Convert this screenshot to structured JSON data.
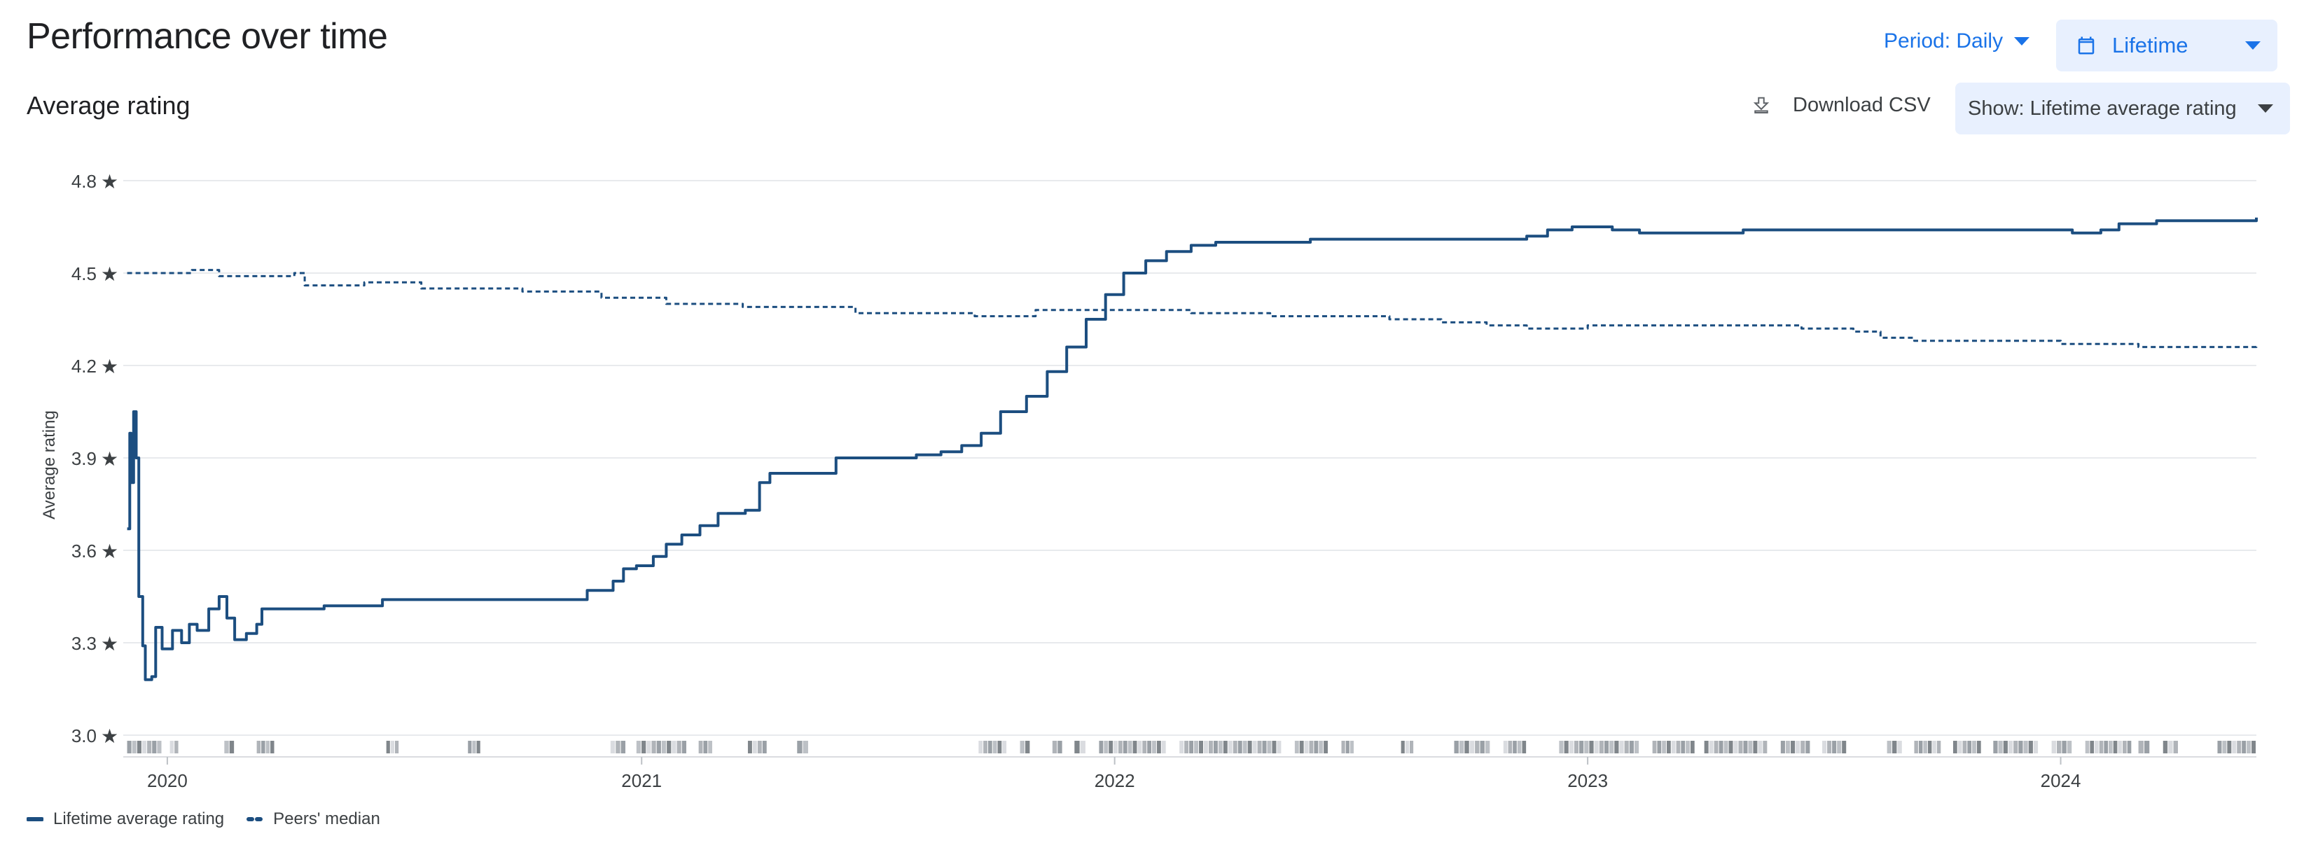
{
  "header": {
    "title": "Performance over time",
    "period_label": "Period: Daily",
    "range_label": "Lifetime"
  },
  "section": {
    "title": "Average rating",
    "download_label": "Download CSV",
    "show_label": "Show: Lifetime average rating"
  },
  "icons": {
    "calendar": "calendar-icon",
    "download": "download-icon",
    "star": "star-icon",
    "dropdown": "chevron-down-icon"
  },
  "colors": {
    "series": "#1c4e80",
    "accent": "#1a73e8",
    "button_bg": "#e8f0fe",
    "grid": "#e8eaed"
  },
  "chart_data": {
    "type": "line",
    "ylabel": "Average rating",
    "xlabel": "",
    "ylim": [
      3.0,
      4.8
    ],
    "xlim": [
      "2019-11-28",
      "2024-05-31"
    ],
    "y_ticks": [
      {
        "value": 4.8,
        "label": "4.8"
      },
      {
        "value": 4.5,
        "label": "4.5"
      },
      {
        "value": 4.2,
        "label": "4.2"
      },
      {
        "value": 3.9,
        "label": "3.9"
      },
      {
        "value": 3.6,
        "label": "3.6"
      },
      {
        "value": 3.3,
        "label": "3.3"
      },
      {
        "value": 3.0,
        "label": "3.0"
      }
    ],
    "x_ticks": [
      {
        "date": "2020-01-01",
        "label": "2020"
      },
      {
        "date": "2021-01-01",
        "label": "2021"
      },
      {
        "date": "2022-01-01",
        "label": "2022"
      },
      {
        "date": "2023-01-01",
        "label": "2023"
      },
      {
        "date": "2024-01-01",
        "label": "2024"
      }
    ],
    "grid": true,
    "legend_position": "bottom-left",
    "series": [
      {
        "name": "Lifetime average rating",
        "style": "solid",
        "step": true,
        "points": [
          [
            "2019-12-01",
            3.67
          ],
          [
            "2019-12-03",
            3.98
          ],
          [
            "2019-12-04",
            3.82
          ],
          [
            "2019-12-06",
            4.05
          ],
          [
            "2019-12-08",
            3.9
          ],
          [
            "2019-12-10",
            3.45
          ],
          [
            "2019-12-13",
            3.29
          ],
          [
            "2019-12-15",
            3.18
          ],
          [
            "2019-12-20",
            3.19
          ],
          [
            "2019-12-23",
            3.35
          ],
          [
            "2019-12-28",
            3.28
          ],
          [
            "2020-01-05",
            3.34
          ],
          [
            "2020-01-12",
            3.3
          ],
          [
            "2020-01-18",
            3.36
          ],
          [
            "2020-01-24",
            3.34
          ],
          [
            "2020-02-02",
            3.41
          ],
          [
            "2020-02-10",
            3.45
          ],
          [
            "2020-02-16",
            3.38
          ],
          [
            "2020-02-22",
            3.31
          ],
          [
            "2020-03-02",
            3.33
          ],
          [
            "2020-03-10",
            3.36
          ],
          [
            "2020-03-14",
            3.41
          ],
          [
            "2020-05-01",
            3.42
          ],
          [
            "2020-06-15",
            3.44
          ],
          [
            "2020-11-20",
            3.47
          ],
          [
            "2020-12-10",
            3.5
          ],
          [
            "2020-12-18",
            3.54
          ],
          [
            "2020-12-28",
            3.55
          ],
          [
            "2021-01-10",
            3.58
          ],
          [
            "2021-01-20",
            3.62
          ],
          [
            "2021-02-01",
            3.65
          ],
          [
            "2021-02-15",
            3.68
          ],
          [
            "2021-03-01",
            3.72
          ],
          [
            "2021-03-22",
            3.73
          ],
          [
            "2021-04-02",
            3.82
          ],
          [
            "2021-04-10",
            3.85
          ],
          [
            "2021-05-31",
            3.9
          ],
          [
            "2021-08-01",
            3.91
          ],
          [
            "2021-08-20",
            3.92
          ],
          [
            "2021-09-05",
            3.94
          ],
          [
            "2021-09-20",
            3.98
          ],
          [
            "2021-10-05",
            4.05
          ],
          [
            "2021-10-25",
            4.1
          ],
          [
            "2021-11-10",
            4.18
          ],
          [
            "2021-11-25",
            4.26
          ],
          [
            "2021-12-10",
            4.35
          ],
          [
            "2021-12-25",
            4.43
          ],
          [
            "2022-01-08",
            4.5
          ],
          [
            "2022-01-25",
            4.54
          ],
          [
            "2022-02-10",
            4.57
          ],
          [
            "2022-03-01",
            4.59
          ],
          [
            "2022-03-20",
            4.6
          ],
          [
            "2022-06-01",
            4.61
          ],
          [
            "2022-09-01",
            4.61
          ],
          [
            "2022-11-15",
            4.62
          ],
          [
            "2022-12-01",
            4.64
          ],
          [
            "2022-12-20",
            4.65
          ],
          [
            "2023-01-20",
            4.64
          ],
          [
            "2023-02-10",
            4.63
          ],
          [
            "2023-05-01",
            4.64
          ],
          [
            "2023-09-01",
            4.64
          ],
          [
            "2023-11-15",
            4.64
          ],
          [
            "2024-01-10",
            4.63
          ],
          [
            "2024-02-01",
            4.64
          ],
          [
            "2024-02-15",
            4.66
          ],
          [
            "2024-03-15",
            4.67
          ],
          [
            "2024-04-20",
            4.67
          ],
          [
            "2024-05-31",
            4.68
          ]
        ]
      },
      {
        "name": "Peers' median",
        "style": "dashed",
        "step": true,
        "points": [
          [
            "2019-12-01",
            4.5
          ],
          [
            "2020-01-20",
            4.51
          ],
          [
            "2020-02-10",
            4.49
          ],
          [
            "2020-04-08",
            4.5
          ],
          [
            "2020-04-16",
            4.46
          ],
          [
            "2020-06-01",
            4.47
          ],
          [
            "2020-07-15",
            4.45
          ],
          [
            "2020-10-01",
            4.44
          ],
          [
            "2020-12-01",
            4.42
          ],
          [
            "2021-01-20",
            4.4
          ],
          [
            "2021-03-20",
            4.39
          ],
          [
            "2021-06-15",
            4.37
          ],
          [
            "2021-08-20",
            4.37
          ],
          [
            "2021-09-15",
            4.36
          ],
          [
            "2021-11-01",
            4.38
          ],
          [
            "2022-03-01",
            4.37
          ],
          [
            "2022-05-01",
            4.36
          ],
          [
            "2022-08-01",
            4.35
          ],
          [
            "2022-09-10",
            4.34
          ],
          [
            "2022-10-15",
            4.33
          ],
          [
            "2022-11-15",
            4.32
          ],
          [
            "2023-01-01",
            4.33
          ],
          [
            "2023-06-15",
            4.32
          ],
          [
            "2023-07-25",
            4.31
          ],
          [
            "2023-08-15",
            4.29
          ],
          [
            "2023-09-10",
            4.28
          ],
          [
            "2024-01-01",
            4.27
          ],
          [
            "2024-03-01",
            4.26
          ],
          [
            "2024-05-31",
            4.27
          ]
        ]
      }
    ],
    "activity_ranges": [
      [
        "2019-12-01",
        "2019-12-28"
      ],
      [
        "2020-01-03",
        "2020-01-10"
      ],
      [
        "2020-02-14",
        "2020-02-22"
      ],
      [
        "2020-03-10",
        "2020-03-24"
      ],
      [
        "2020-06-18",
        "2020-06-28"
      ],
      [
        "2020-08-20",
        "2020-08-30"
      ],
      [
        "2020-12-08",
        "2020-12-20"
      ],
      [
        "2020-12-28",
        "2021-02-05"
      ],
      [
        "2021-02-14",
        "2021-02-25"
      ],
      [
        "2021-03-24",
        "2021-04-08"
      ],
      [
        "2021-05-01",
        "2021-05-10"
      ],
      [
        "2021-09-18",
        "2021-10-10"
      ],
      [
        "2021-10-20",
        "2021-10-28"
      ],
      [
        "2021-11-14",
        "2021-11-22"
      ],
      [
        "2021-12-01",
        "2021-12-10"
      ],
      [
        "2021-12-20",
        "2022-02-10"
      ],
      [
        "2022-02-20",
        "2022-05-10"
      ],
      [
        "2022-05-20",
        "2022-06-15"
      ],
      [
        "2022-06-25",
        "2022-07-05"
      ],
      [
        "2022-08-10",
        "2022-08-20"
      ],
      [
        "2022-09-20",
        "2022-10-18"
      ],
      [
        "2022-10-28",
        "2022-11-15"
      ],
      [
        "2022-12-10",
        "2023-02-10"
      ],
      [
        "2023-02-20",
        "2023-03-25"
      ],
      [
        "2023-04-01",
        "2023-05-20"
      ],
      [
        "2023-05-30",
        "2023-06-22"
      ],
      [
        "2023-07-01",
        "2023-07-20"
      ],
      [
        "2023-08-20",
        "2023-09-01"
      ],
      [
        "2023-09-10",
        "2023-10-01"
      ],
      [
        "2023-10-10",
        "2023-11-01"
      ],
      [
        "2023-11-10",
        "2023-12-15"
      ],
      [
        "2023-12-25",
        "2024-01-10"
      ],
      [
        "2024-01-20",
        "2024-02-25"
      ],
      [
        "2024-03-01",
        "2024-03-10"
      ],
      [
        "2024-03-20",
        "2024-04-01"
      ],
      [
        "2024-05-01",
        "2024-05-31"
      ]
    ]
  },
  "legend": {
    "items": [
      {
        "label": "Lifetime average rating",
        "style": "solid"
      },
      {
        "label": "Peers' median",
        "style": "dashed"
      }
    ]
  }
}
